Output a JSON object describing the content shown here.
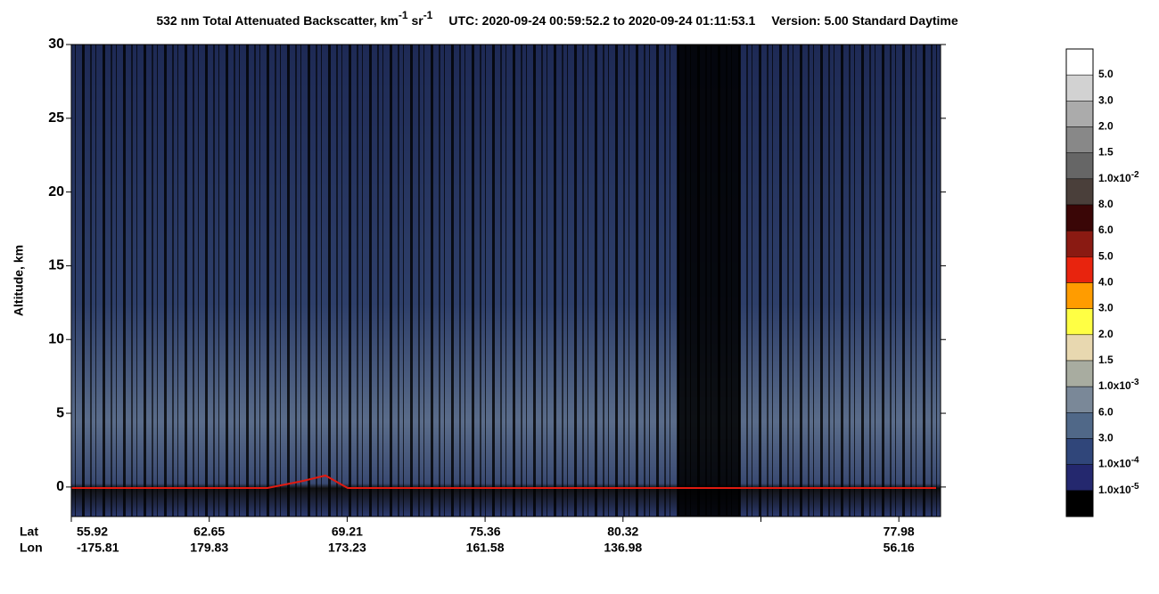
{
  "chart_data": {
    "type": "heatmap",
    "title": {
      "main": "532 nm Total Attenuated Backscatter, km",
      "exp1": "-1",
      "unit2": " sr",
      "exp2": "-1",
      "utc": "UTC:  2020-09-24 00:59:52.2  to  2020-09-24 01:11:53.1",
      "version": "Version: 5.00  Standard  Daytime"
    },
    "y_label": "Altitude, km",
    "ylim": [
      -2,
      30
    ],
    "yticks": [
      0,
      5,
      10,
      15,
      20,
      25,
      30
    ],
    "x_row_labels": [
      "Lat",
      "Lon"
    ],
    "x_ticks": [
      {
        "lat": "55.92",
        "lon": "-175.81"
      },
      {
        "lat": "62.65",
        "lon": "179.83"
      },
      {
        "lat": "69.21",
        "lon": "173.23"
      },
      {
        "lat": "75.36",
        "lon": "161.58"
      },
      {
        "lat": "80.32",
        "lon": "136.98"
      },
      {
        "lat": null,
        "lon": null
      },
      {
        "lat": "77.98",
        "lon": "56.16"
      }
    ],
    "colorbar": {
      "colors": [
        "#ffffff",
        "#d2d2d2",
        "#ababab",
        "#888888",
        "#666666",
        "#4a3f3a",
        "#3a0606",
        "#8a1a12",
        "#e8240e",
        "#ff9c00",
        "#ffff44",
        "#e8d8b0",
        "#a8aca0",
        "#7a8898",
        "#506888",
        "#30467a",
        "#24286e",
        "#000000"
      ],
      "labels": [
        {
          "text": "5.0"
        },
        {
          "text": "3.0"
        },
        {
          "text": "2.0"
        },
        {
          "text": "1.5"
        },
        {
          "text": "1.0x10",
          "exp": "-2"
        },
        {
          "text": "8.0"
        },
        {
          "text": "6.0"
        },
        {
          "text": "5.0"
        },
        {
          "text": "4.0"
        },
        {
          "text": "3.0"
        },
        {
          "text": "2.0"
        },
        {
          "text": "1.5"
        },
        {
          "text": "1.0x10",
          "exp": "-3"
        },
        {
          "text": "6.0"
        },
        {
          "text": "3.0"
        },
        {
          "text": "1.0x10",
          "exp": "-4"
        },
        {
          "text": "1.0x10",
          "exp": "-5"
        }
      ]
    }
  }
}
